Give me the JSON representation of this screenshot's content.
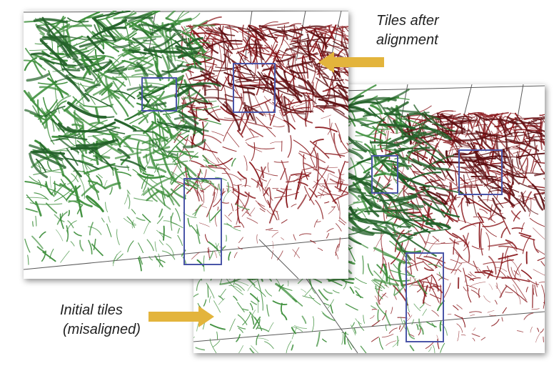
{
  "labels": {
    "after": {
      "line1": "Tiles after",
      "line2": "alignment"
    },
    "initial": {
      "line1": "Initial tiles",
      "line2": "(misaligned)"
    }
  },
  "colors": {
    "green_vessels": "#3e8f3c",
    "green_dark": "#24622a",
    "red_vessels": "#8b1a1e",
    "red_dark": "#5e0f12",
    "highlight_box": "#4a55a8",
    "arrow": "#e3b43c",
    "grid_line": "#5a5a5a"
  },
  "highlight_boxes_per_panel": 3
}
